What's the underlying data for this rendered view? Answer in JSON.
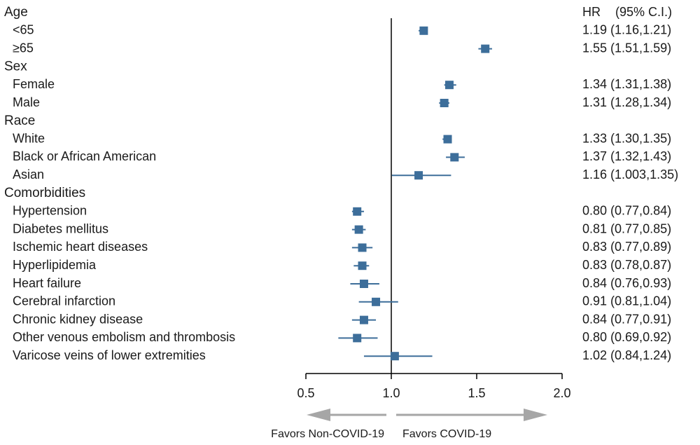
{
  "chart_data": {
    "type": "forest",
    "header": {
      "hr": "HR",
      "ci": "(95% C.I.)"
    },
    "xlim": [
      0.5,
      2.0
    ],
    "xticks": [
      {
        "value": 0.5,
        "label": "0.5"
      },
      {
        "value": 1.0,
        "label": "1.0"
      },
      {
        "value": 1.5,
        "label": "1.5"
      },
      {
        "value": 2.0,
        "label": "2.0"
      }
    ],
    "reference_line": 1.0,
    "favors": {
      "left": "Favors Non-COVID-19",
      "right": "Favors COVID-19"
    },
    "rows": [
      {
        "kind": "group",
        "label": "Age"
      },
      {
        "kind": "item",
        "label": "<65",
        "hr": 1.19,
        "lo": 1.16,
        "hi": 1.21,
        "text": "1.19 (1.16,1.21)"
      },
      {
        "kind": "item",
        "label": "≥65",
        "hr": 1.55,
        "lo": 1.51,
        "hi": 1.59,
        "text": "1.55 (1.51,1.59)"
      },
      {
        "kind": "group",
        "label": "Sex"
      },
      {
        "kind": "item",
        "label": "Female",
        "hr": 1.34,
        "lo": 1.31,
        "hi": 1.38,
        "text": "1.34 (1.31,1.38)"
      },
      {
        "kind": "item",
        "label": "Male",
        "hr": 1.31,
        "lo": 1.28,
        "hi": 1.34,
        "text": "1.31 (1.28,1.34)"
      },
      {
        "kind": "group",
        "label": "Race"
      },
      {
        "kind": "item",
        "label": "White",
        "hr": 1.33,
        "lo": 1.3,
        "hi": 1.35,
        "text": "1.33 (1.30,1.35)"
      },
      {
        "kind": "item",
        "label": "Black or African American",
        "hr": 1.37,
        "lo": 1.32,
        "hi": 1.43,
        "text": "1.37 (1.32,1.43)"
      },
      {
        "kind": "item",
        "label": "Asian",
        "hr": 1.16,
        "lo": 1.003,
        "hi": 1.35,
        "text": "1.16 (1.003,1.35)"
      },
      {
        "kind": "group",
        "label": "Comorbidities"
      },
      {
        "kind": "item",
        "label": "Hypertension",
        "hr": 0.8,
        "lo": 0.77,
        "hi": 0.84,
        "text": "0.80 (0.77,0.84)"
      },
      {
        "kind": "item",
        "label": "Diabetes mellitus",
        "hr": 0.81,
        "lo": 0.77,
        "hi": 0.85,
        "text": "0.81 (0.77,0.85)"
      },
      {
        "kind": "item",
        "label": "Ischemic heart diseases",
        "hr": 0.83,
        "lo": 0.77,
        "hi": 0.89,
        "text": "0.83 (0.77,0.89)"
      },
      {
        "kind": "item",
        "label": "Hyperlipidemia",
        "hr": 0.83,
        "lo": 0.78,
        "hi": 0.87,
        "text": "0.83 (0.78,0.87)"
      },
      {
        "kind": "item",
        "label": "Heart failure",
        "hr": 0.84,
        "lo": 0.76,
        "hi": 0.93,
        "text": "0.84 (0.76,0.93)"
      },
      {
        "kind": "item",
        "label": "Cerebral infarction",
        "hr": 0.91,
        "lo": 0.81,
        "hi": 1.04,
        "text": "0.91 (0.81,1.04)"
      },
      {
        "kind": "item",
        "label": "Chronic kidney disease",
        "hr": 0.84,
        "lo": 0.77,
        "hi": 0.91,
        "text": "0.84 (0.77,0.91)"
      },
      {
        "kind": "item",
        "label": "Other venous embolism and thrombosis",
        "hr": 0.8,
        "lo": 0.69,
        "hi": 0.92,
        "text": "0.80 (0.69,0.92)"
      },
      {
        "kind": "item",
        "label": "Varicose veins of lower extremities",
        "hr": 1.02,
        "lo": 0.84,
        "hi": 1.24,
        "text": "1.02 (0.84,1.24)"
      }
    ],
    "colors": {
      "marker": "#3d6e9a",
      "line": "#000000",
      "arrow": "#a6a6a6",
      "text": "#1a1a1a"
    }
  }
}
